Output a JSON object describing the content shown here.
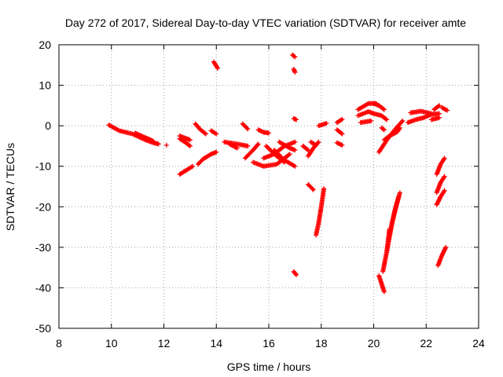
{
  "chart_data": {
    "type": "scatter",
    "title": "Day 272 of 2017, Sidereal Day-to-day VTEC variation (SDTVAR) for receiver amte",
    "xlabel": "GPS time / hours",
    "ylabel": "SDTVAR / TECUs",
    "xlim": [
      8,
      24
    ],
    "ylim": [
      -50,
      20
    ],
    "xticks": [
      "8",
      "10",
      "12",
      "14",
      "16",
      "18",
      "20",
      "22",
      "24"
    ],
    "yticks": [
      "20",
      "10",
      "0",
      "-10",
      "-20",
      "-30",
      "-40",
      "-50"
    ],
    "grid": true,
    "marker": "+",
    "marker_color": "#ff0000",
    "segments": [
      {
        "x": [
          9.9,
          10.3,
          10.8,
          11.3,
          11.6,
          11.8
        ],
        "y": [
          0.2,
          -1.2,
          -2.0,
          -3.5,
          -4.2,
          -4.5
        ]
      },
      {
        "x": [
          10.9,
          11.4,
          11.6
        ],
        "y": [
          -1.8,
          -3.2,
          -3.8
        ]
      },
      {
        "x": [
          12.1
        ],
        "y": [
          -4.8
        ]
      },
      {
        "x": [
          12.6,
          12.8,
          13.0
        ],
        "y": [
          -3.2,
          -4.0,
          -5.0
        ]
      },
      {
        "x": [
          12.6,
          12.8,
          13.0
        ],
        "y": [
          -2.5,
          -3.0,
          -3.5
        ]
      },
      {
        "x": [
          12.6,
          12.9,
          13.1
        ],
        "y": [
          -12.0,
          -10.8,
          -10.0
        ]
      },
      {
        "x": [
          13.3,
          13.5,
          13.8,
          14.0
        ],
        "y": [
          -9.5,
          -8.2,
          -7.0,
          -6.5
        ]
      },
      {
        "x": [
          13.2,
          13.4,
          13.6
        ],
        "y": [
          0.5,
          -1.0,
          -2.0
        ]
      },
      {
        "x": [
          13.8,
          14.0
        ],
        "y": [
          -1.2,
          -2.0
        ]
      },
      {
        "x": [
          13.9,
          14.05
        ],
        "y": [
          15.8,
          14.2
        ]
      },
      {
        "x": [
          14.3,
          14.8,
          15.2
        ],
        "y": [
          -4.0,
          -4.5,
          -5.0
        ]
      },
      {
        "x": [
          14.5,
          14.8
        ],
        "y": [
          -4.5,
          -5.5
        ]
      },
      {
        "x": [
          15.0,
          15.2
        ],
        "y": [
          0.5,
          -0.8
        ]
      },
      {
        "x": [
          15.1,
          15.4,
          15.6
        ],
        "y": [
          -8.0,
          -6.0,
          -4.5
        ]
      },
      {
        "x": [
          15.6,
          15.8,
          16.0
        ],
        "y": [
          -1.0,
          -1.6,
          -1.8
        ]
      },
      {
        "x": [
          15.4,
          15.8,
          16.3,
          16.8
        ],
        "y": [
          -9.0,
          -10.0,
          -9.5,
          -7.0
        ]
      },
      {
        "x": [
          15.8,
          16.2,
          16.6,
          17.0
        ],
        "y": [
          -8.0,
          -7.0,
          -5.0,
          -4.0
        ]
      },
      {
        "x": [
          15.9,
          16.3,
          16.6
        ],
        "y": [
          -5.0,
          -7.5,
          -9.0
        ]
      },
      {
        "x": [
          16.2,
          16.6,
          17.0
        ],
        "y": [
          -6.0,
          -8.5,
          -10.0
        ]
      },
      {
        "x": [
          16.4,
          16.8,
          17.0
        ],
        "y": [
          -4.0,
          -5.5,
          -6.0
        ]
      },
      {
        "x": [
          17.3,
          17.5
        ],
        "y": [
          -5.0,
          -6.0
        ]
      },
      {
        "x": [
          16.9,
          17.0
        ],
        "y": [
          17.5,
          17.0
        ]
      },
      {
        "x": [
          16.95,
          17.0
        ],
        "y": [
          14.0,
          13.2
        ]
      },
      {
        "x": [
          16.95,
          17.05
        ],
        "y": [
          1.8,
          1.5
        ]
      },
      {
        "x": [
          16.95,
          17.05
        ],
        "y": [
          -36.0,
          -36.8
        ]
      },
      {
        "x": [
          17.5,
          17.7,
          17.9
        ],
        "y": [
          -7.5,
          -5.5,
          -4.0
        ]
      },
      {
        "x": [
          17.6,
          17.8
        ],
        "y": [
          -4.0,
          -4.8
        ]
      },
      {
        "x": [
          17.5,
          17.7
        ],
        "y": [
          -14.5,
          -15.8
        ]
      },
      {
        "x": [
          17.8,
          17.9,
          18.0,
          18.1
        ],
        "y": [
          -27.0,
          -24.0,
          -20.0,
          -15.5
        ]
      },
      {
        "x": [
          17.9,
          18.2
        ],
        "y": [
          0.0,
          0.6
        ]
      },
      {
        "x": [
          18.6,
          18.8
        ],
        "y": [
          0.8,
          1.6
        ]
      },
      {
        "x": [
          18.6,
          18.8
        ],
        "y": [
          -1.0,
          -2.0
        ]
      },
      {
        "x": [
          18.6,
          18.8
        ],
        "y": [
          -4.2,
          -4.8
        ]
      },
      {
        "x": [
          19.4,
          19.8,
          20.1
        ],
        "y": [
          4.0,
          5.5,
          5.5
        ]
      },
      {
        "x": [
          19.4,
          19.8,
          20.0
        ],
        "y": [
          2.5,
          3.5,
          3.0
        ]
      },
      {
        "x": [
          19.5,
          19.9
        ],
        "y": [
          0.8,
          1.2
        ]
      },
      {
        "x": [
          20.0,
          20.2,
          20.4
        ],
        "y": [
          5.5,
          5.0,
          4.0
        ]
      },
      {
        "x": [
          20.0,
          20.3,
          20.5
        ],
        "y": [
          3.0,
          2.5,
          1.5
        ]
      },
      {
        "x": [
          20.3,
          20.4
        ],
        "y": [
          -0.5,
          -1.0
        ]
      },
      {
        "x": [
          20.2,
          20.5,
          20.8,
          21.1
        ],
        "y": [
          -6.5,
          -3.5,
          -1.0,
          1.2
        ]
      },
      {
        "x": [
          20.4,
          20.6,
          20.9,
          21.0
        ],
        "y": [
          -3.5,
          -2.5,
          -1.5,
          -0.5
        ]
      },
      {
        "x": [
          21.3,
          21.6,
          21.9
        ],
        "y": [
          0.8,
          1.5,
          2.0
        ]
      },
      {
        "x": [
          21.4,
          21.8,
          22.2
        ],
        "y": [
          3.2,
          3.6,
          3.0
        ]
      },
      {
        "x": [
          21.9,
          22.2,
          22.5
        ],
        "y": [
          2.0,
          2.8,
          3.0
        ]
      },
      {
        "x": [
          22.3,
          22.5
        ],
        "y": [
          4.0,
          5.0
        ]
      },
      {
        "x": [
          22.2,
          22.5
        ],
        "y": [
          1.5,
          2.0
        ]
      },
      {
        "x": [
          22.6,
          22.8
        ],
        "y": [
          4.5,
          3.8
        ]
      },
      {
        "x": [
          20.2,
          20.3,
          20.4
        ],
        "y": [
          -37.0,
          -39.0,
          -41.0
        ]
      },
      {
        "x": [
          20.35,
          20.5,
          20.6
        ],
        "y": [
          -36.0,
          -31.0,
          -25.5
        ]
      },
      {
        "x": [
          20.5,
          20.7,
          20.85,
          21.0
        ],
        "y": [
          -31.0,
          -24.0,
          -20.0,
          -16.5
        ]
      },
      {
        "x": [
          20.6,
          20.8,
          20.95
        ],
        "y": [
          -27.0,
          -21.0,
          -17.5
        ]
      },
      {
        "x": [
          22.4,
          22.55,
          22.7
        ],
        "y": [
          -12.0,
          -9.5,
          -8.0
        ]
      },
      {
        "x": [
          22.4,
          22.55,
          22.7
        ],
        "y": [
          -16.5,
          -14.0,
          -12.5
        ]
      },
      {
        "x": [
          22.4,
          22.55,
          22.7
        ],
        "y": [
          -19.5,
          -17.5,
          -16.0
        ]
      },
      {
        "x": [
          22.45,
          22.6,
          22.75
        ],
        "y": [
          -34.5,
          -32.0,
          -30.0
        ]
      }
    ]
  }
}
